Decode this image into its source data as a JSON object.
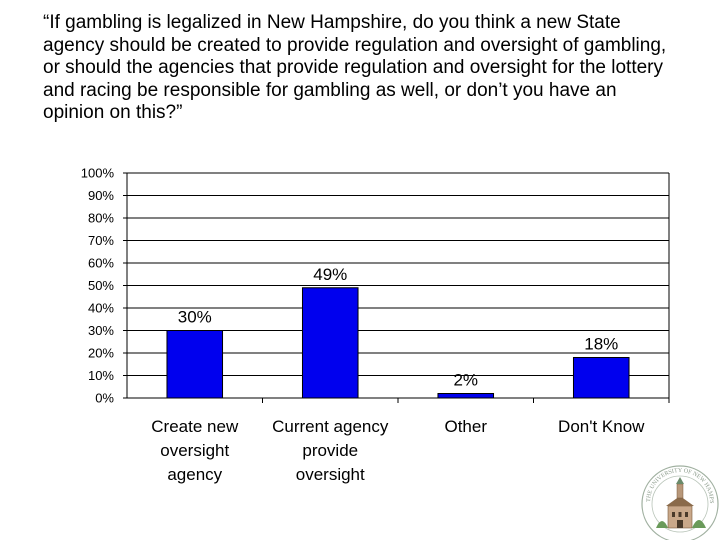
{
  "question": "“If gambling is legalized in New Hampshire, do you think a new State agency should be created to provide regulation and oversight of gambling, or should the agencies that provide regulation and oversight for the lottery and racing be responsible for gambling as well, or don’t you have an opinion on this?”",
  "chart_data": {
    "type": "bar",
    "categories": [
      [
        "Create new",
        "oversight",
        "agency"
      ],
      [
        "Current agency",
        "provide",
        "oversight"
      ],
      [
        "Other"
      ],
      [
        "Don't Know"
      ]
    ],
    "values": [
      30,
      49,
      2,
      18
    ],
    "data_labels": [
      "30%",
      "49%",
      "2%",
      "18%"
    ],
    "ylim": [
      0,
      100
    ],
    "yticks": [
      "0%",
      "10%",
      "20%",
      "30%",
      "40%",
      "50%",
      "60%",
      "70%",
      "80%",
      "90%",
      "100%"
    ],
    "grid": true,
    "legend": "none",
    "bar_color": "#0000ee",
    "bar_edge_color": "#000000"
  },
  "seal": {
    "icon": "university-seal-icon",
    "text": "THE UNIVERSITY OF NEW HAMPSHIRE"
  }
}
